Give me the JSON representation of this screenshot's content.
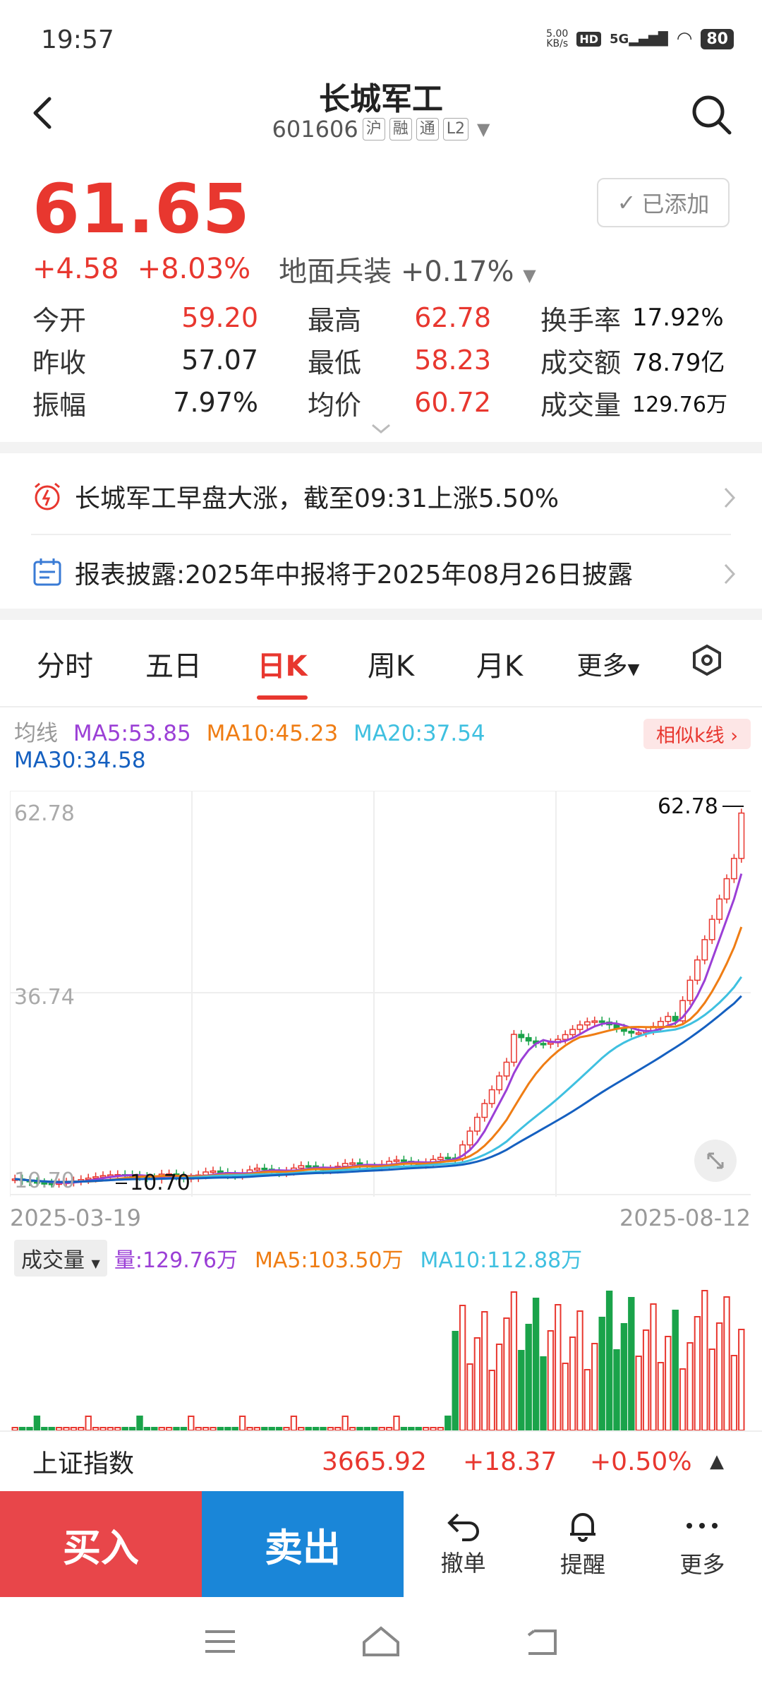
{
  "status": {
    "time": "19:57",
    "speed": "5.00\nKB/s",
    "network": "5G",
    "battery": "80"
  },
  "header": {
    "title": "长城军工",
    "code": "601606",
    "tags": [
      "沪",
      "融",
      "通",
      "L2"
    ]
  },
  "quote": {
    "price": "61.65",
    "change": "+4.58",
    "change_pct": "+8.03%",
    "sector": "地面兵装",
    "sector_pct": "+0.17%",
    "added_label": "已添加"
  },
  "stats": {
    "open_label": "今开",
    "open": "59.20",
    "high_label": "最高",
    "high": "62.78",
    "turnover_label": "换手率",
    "turnover": "17.92%",
    "prev_label": "昨收",
    "prev": "57.07",
    "low_label": "最低",
    "low": "58.23",
    "amount_label": "成交额",
    "amount": "78.79亿",
    "amp_label": "振幅",
    "amp": "7.97%",
    "avg_label": "均价",
    "avg": "60.72",
    "volume_label": "成交量",
    "volume": "129.76万"
  },
  "news": [
    {
      "text": "长城军工早盘大涨，截至09:31上涨5.50%"
    },
    {
      "text": "报表披露:2025年中报将于2025年08月26日披露"
    }
  ],
  "tabs": [
    "分时",
    "五日",
    "日K",
    "周K",
    "月K",
    "更多"
  ],
  "active_tab": "日K",
  "ma": {
    "label": "均线",
    "ma5": "MA5:53.85",
    "ma10": "MA10:45.23",
    "ma20": "MA20:37.54",
    "ma30": "MA30:34.58",
    "similar": "相似k线"
  },
  "chart_data": {
    "type": "candlestick",
    "y_ticks": [
      "62.78",
      "36.74",
      "10.70"
    ],
    "max_label": "62.78",
    "min_label": "10.70",
    "x_start": "2025-03-19",
    "x_end": "2025-08-12",
    "ylim": [
      10.7,
      62.78
    ]
  },
  "volume": {
    "selector": "成交量",
    "vol": "量:129.76万",
    "ma5": "MA5:103.50万",
    "ma10": "MA10:112.88万"
  },
  "index": {
    "name": "上证指数",
    "value": "3665.92",
    "change": "+18.37",
    "pct": "+0.50%"
  },
  "actions": {
    "buy": "买入",
    "sell": "卖出",
    "cancel": "撤单",
    "alert": "提醒",
    "more": "更多"
  },
  "colors": {
    "up": "#e8372f",
    "down": "#1aa34a",
    "ma5": "#9b3fd6",
    "ma10": "#ef7d14",
    "ma20": "#3fc0e0",
    "ma30": "#1560c0"
  }
}
